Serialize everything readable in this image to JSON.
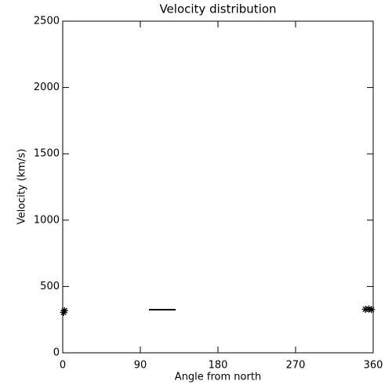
{
  "chart_data": {
    "type": "scatter",
    "title": "Velocity distribution",
    "x_label": "Angle from north",
    "y_label": "Velocity (km/s)",
    "xlim": [
      0,
      360
    ],
    "ylim": [
      0,
      2500
    ],
    "xticks": [
      0,
      90,
      180,
      270,
      360
    ],
    "yticks": [
      0,
      500,
      1000,
      1500,
      2000,
      2500
    ],
    "color": "#000000",
    "series": [
      {
        "marker": "asterisk",
        "x": [
          1,
          2,
          351,
          355,
          358
        ],
        "values": [
          305,
          318,
          328,
          330,
          326
        ]
      },
      {
        "marker": "line",
        "x": [
          100,
          131
        ],
        "values": [
          325,
          325
        ]
      }
    ]
  }
}
